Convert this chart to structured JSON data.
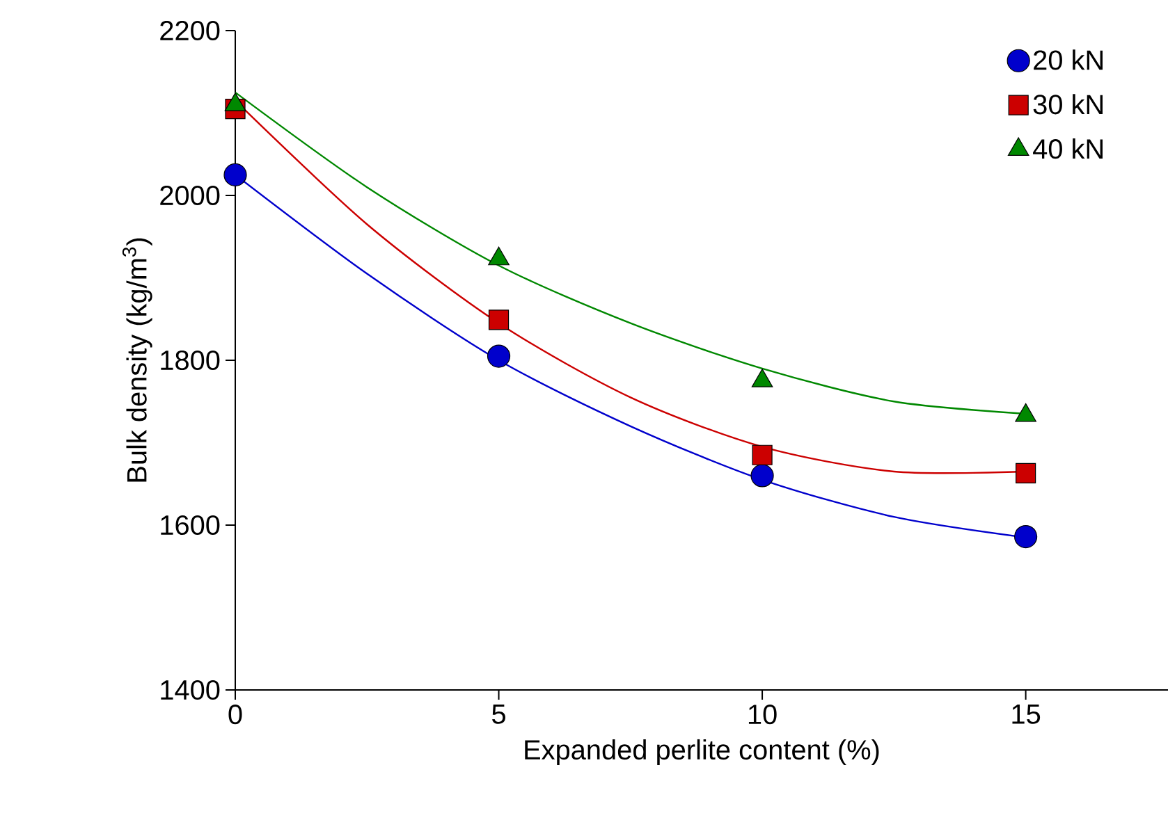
{
  "chart_data": {
    "type": "scatter",
    "xlabel": "Expanded perlite content (%)",
    "ylabel": "Bulk density (kg/m$^{3}$)",
    "xlim": [
      0,
      17.7
    ],
    "ylim": [
      1400,
      2200
    ],
    "xticks": [
      0,
      5,
      10,
      15
    ],
    "yticks": [
      1400,
      1600,
      1800,
      2000,
      2200
    ],
    "grid": false,
    "legend": "top right",
    "series": [
      {
        "name": "20 kN",
        "marker": "circle",
        "color": "#0000cc",
        "x": [
          0,
          5,
          10,
          15
        ],
        "values": [
          2025,
          1805,
          1660,
          1586
        ]
      },
      {
        "name": "30 kN",
        "marker": "square",
        "color": "#cc0000",
        "x": [
          0,
          5,
          10,
          15
        ],
        "values": [
          2105,
          1849,
          1685,
          1663
        ]
      },
      {
        "name": "40 kN",
        "marker": "triangle",
        "color": "#008800",
        "x": [
          0,
          5,
          10,
          15
        ],
        "values": [
          2110,
          1923,
          1775,
          1733
        ]
      },
      {
        "type": "line",
        "marker": "none",
        "color": "#0000cc",
        "x": [
          0,
          2.5,
          5,
          7.5,
          10,
          12.5,
          15
        ],
        "values": [
          2025,
          1905,
          1800,
          1720,
          1655,
          1610,
          1585
        ]
      },
      {
        "type": "line",
        "marker": "none",
        "color": "#cc0000",
        "x": [
          0,
          2.5,
          5,
          7.5,
          10,
          12.5,
          15
        ],
        "values": [
          2115,
          1965,
          1845,
          1755,
          1695,
          1665,
          1665
        ]
      },
      {
        "type": "line",
        "marker": "none",
        "color": "#008800",
        "x": [
          0,
          2.5,
          5,
          7.5,
          10,
          12.5,
          15
        ],
        "values": [
          2125,
          2010,
          1915,
          1845,
          1790,
          1750,
          1735
        ]
      }
    ]
  }
}
